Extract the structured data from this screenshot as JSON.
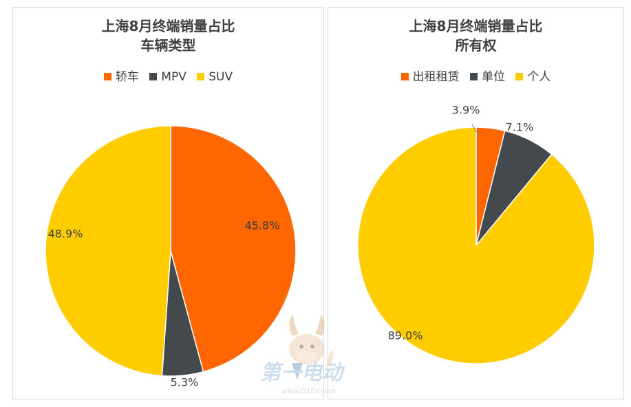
{
  "chart_data": [
    {
      "type": "pie",
      "title": "上海8月终端销量占比",
      "subtitle": "车辆类型",
      "legend_position": "top",
      "categories": [
        "轿车",
        "MPV",
        "SUV"
      ],
      "values": [
        45.8,
        5.3,
        48.9
      ],
      "labels": [
        "45.8%",
        "5.3%",
        "48.9%"
      ],
      "colors": [
        "#FF6600",
        "#44494D",
        "#FFCC00"
      ]
    },
    {
      "type": "pie",
      "title": "上海8月终端销量占比",
      "subtitle": "所有权",
      "legend_position": "top",
      "categories": [
        "出租租赁",
        "单位",
        "个人"
      ],
      "values": [
        3.9,
        7.1,
        89.0
      ],
      "labels": [
        "3.9%",
        "7.1%",
        "89.0%"
      ],
      "colors": [
        "#FF6600",
        "#44494D",
        "#FFCC00"
      ]
    }
  ],
  "watermark": {
    "brand_text": "第一电动",
    "site_text": "www.D1EV.com"
  }
}
